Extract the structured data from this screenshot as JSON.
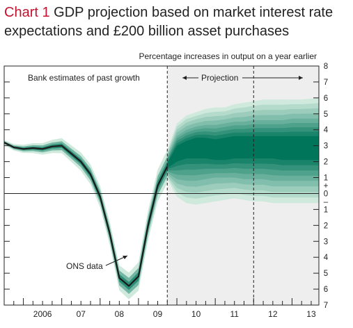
{
  "title_number": "Chart 1",
  "title_text": "GDP projection based on market interest rate expectations and £200 billion asset purchases",
  "chart_data": {
    "type": "area",
    "ylabel": "Percentage increases in output on a year earlier",
    "ylim": [
      -7,
      8
    ],
    "y_tick_labels": [
      "8",
      "7",
      "6",
      "5",
      "4",
      "3",
      "2",
      "1",
      "+",
      "0",
      "–",
      "1",
      "2",
      "3",
      "4",
      "5",
      "6",
      "7"
    ],
    "x_tick_labels": [
      "2006",
      "07",
      "08",
      "09",
      "10",
      "11",
      "12",
      "13"
    ],
    "x_range": [
      2005.5,
      2013.7
    ],
    "annotations": {
      "past_growth": "Bank estimates of past growth",
      "projection": "Projection",
      "ons_data": "ONS data"
    },
    "projection_start": 2009.75,
    "projection_band_end": 2013.7,
    "marker_2011q4": 2012.0,
    "colors": {
      "central": "#00755a",
      "line": "#1a1a1a",
      "band_light": "#cfe9dd",
      "shade": "#eeeeee",
      "title_accent": "#c4122f"
    },
    "series": [
      {
        "name": "ONS data",
        "x": [
          2005.5,
          2005.75,
          2006.0,
          2006.25,
          2006.5,
          2006.75,
          2007.0,
          2007.25,
          2007.5,
          2007.75,
          2008.0,
          2008.25,
          2008.5,
          2008.75,
          2009.0,
          2009.25,
          2009.5,
          2009.75
        ],
        "y": [
          3.2,
          2.9,
          2.8,
          2.85,
          2.8,
          2.95,
          3.0,
          2.5,
          2.0,
          1.2,
          -0.2,
          -2.5,
          -5.3,
          -5.8,
          -5.2,
          -2.0,
          0.5,
          1.7
        ]
      }
    ],
    "fan_bands": [
      {
        "name": "outer",
        "x": [
          2009.75,
          2010.0,
          2010.25,
          2010.5,
          2010.75,
          2011.0,
          2011.25,
          2011.5,
          2011.75,
          2012.0,
          2012.25,
          2012.5,
          2012.75,
          2013.0,
          2013.25,
          2013.5,
          2013.7
        ],
        "upper": [
          2.7,
          4.4,
          4.9,
          5.1,
          5.3,
          5.4,
          5.4,
          5.6,
          5.7,
          5.8,
          5.9,
          5.9,
          5.9,
          5.9,
          5.9,
          5.95,
          6.0
        ],
        "lower": [
          0.9,
          -0.2,
          -0.6,
          -0.7,
          -0.6,
          -0.5,
          -0.4,
          -0.3,
          -0.4,
          -0.5,
          -0.5,
          -0.6,
          -0.6,
          -0.6,
          -0.6,
          -0.6,
          -0.6
        ]
      },
      {
        "name": "middle",
        "x": [
          2009.75,
          2010.0,
          2010.25,
          2010.5,
          2010.75,
          2011.0,
          2011.25,
          2011.5,
          2011.75,
          2012.0,
          2012.25,
          2012.5,
          2012.75,
          2013.0,
          2013.25,
          2013.5,
          2013.7
        ],
        "upper": [
          2.3,
          3.6,
          4.0,
          4.2,
          4.3,
          4.3,
          4.4,
          4.5,
          4.5,
          4.6,
          4.6,
          4.6,
          4.6,
          4.7,
          4.7,
          4.7,
          4.7
        ],
        "lower": [
          1.3,
          0.9,
          0.8,
          0.8,
          0.9,
          1.0,
          1.0,
          1.0,
          0.9,
          0.9,
          0.9,
          0.8,
          0.8,
          0.8,
          0.8,
          0.8,
          0.8
        ]
      },
      {
        "name": "central",
        "x": [
          2009.75,
          2010.0,
          2010.25,
          2010.5,
          2010.75,
          2011.0,
          2011.25,
          2011.5,
          2011.75,
          2012.0,
          2012.25,
          2012.5,
          2012.75,
          2013.0,
          2013.25,
          2013.5,
          2013.7
        ],
        "upper": [
          1.9,
          3.0,
          3.3,
          3.5,
          3.5,
          3.4,
          3.5,
          3.6,
          3.6,
          3.6,
          3.6,
          3.6,
          3.6,
          3.6,
          3.6,
          3.6,
          3.6
        ],
        "lower": [
          1.6,
          2.0,
          2.2,
          2.2,
          2.2,
          2.1,
          2.1,
          2.2,
          2.2,
          2.2,
          2.2,
          2.2,
          2.1,
          2.1,
          2.1,
          2.1,
          2.1
        ]
      }
    ]
  }
}
